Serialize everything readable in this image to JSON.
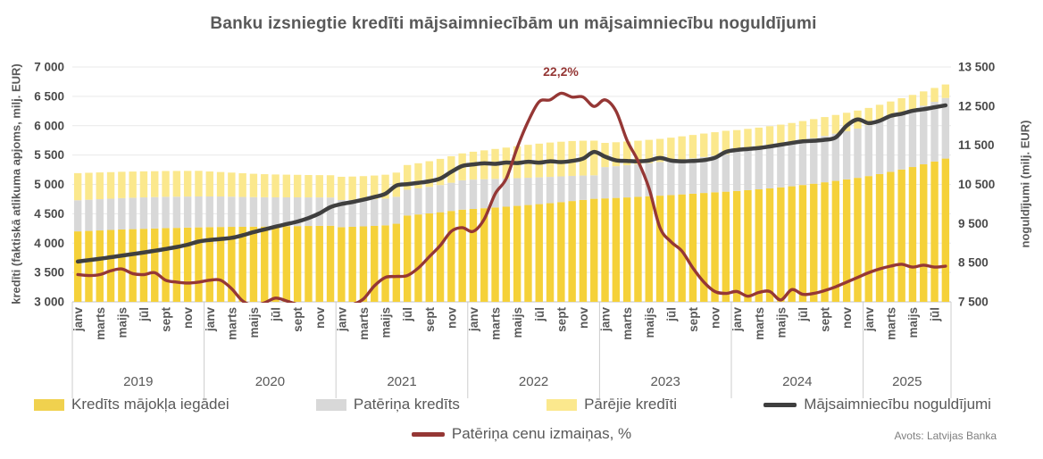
{
  "title": "Banku izsniegtie kredīti mājsaimniecībām un mājsaimniecību noguldījumi",
  "source": "Avots: Latvijas Banka",
  "annotation": {
    "text": "22,2%",
    "series": "Patēriņa cenu izmaiņas, %",
    "x_month": "2022-09"
  },
  "left_axis": {
    "title": "kredīti (faktiskā atlikuma apjoms, milj. EUR)",
    "min": 3000,
    "max": 7000,
    "step": 500,
    "tick_labels": [
      "7 000",
      "6 500",
      "6 000",
      "5 500",
      "5 000",
      "4 500",
      "4 000",
      "3 500",
      "3 000"
    ]
  },
  "right_axis": {
    "title": "noguldījumi (milj. EUR)",
    "min": 7500,
    "max": 13500,
    "step": 1000,
    "tick_labels": [
      "13 500",
      "12 500",
      "11 500",
      "10 500",
      "9 500",
      "8 500",
      "7 500"
    ]
  },
  "x_axis": {
    "month_tick_labels": [
      "janv",
      "marts",
      "maijs",
      "jūl",
      "sept",
      "nov"
    ],
    "years": [
      {
        "label": "2019",
        "months": 12
      },
      {
        "label": "2020",
        "months": 12
      },
      {
        "label": "2021",
        "months": 12
      },
      {
        "label": "2022",
        "months": 12
      },
      {
        "label": "2023",
        "months": 12
      },
      {
        "label": "2024",
        "months": 12
      },
      {
        "label": "2025",
        "months": 8
      }
    ]
  },
  "colors": {
    "mortgage": "#F5D139",
    "consumer": "#D8D8D8",
    "other": "#FBE88D",
    "deposits": "#3F3F3F",
    "inflation": "#953735",
    "gridline": "#E9E9E9",
    "axis_line": "#C0C0C0",
    "separator": "#CCCCCC",
    "tick_text": "#4A4A4A",
    "label_text": "#595959"
  },
  "legend": {
    "row1": [
      {
        "label": "Kredīts mājokļa iegādei",
        "marker": "swatch",
        "color": "#F0D14E"
      },
      {
        "label": "Patēriņa kredīts",
        "marker": "swatch",
        "color": "#D8D8D8"
      },
      {
        "label": "Pārējie kredīti",
        "marker": "swatch",
        "color": "#FBE88D"
      },
      {
        "label": "Mājsaimniecību noguldījumi",
        "marker": "line",
        "color": "#3F3F3F"
      }
    ],
    "row2": [
      {
        "label": "Patēriņa cenu izmaiņas, %",
        "marker": "line",
        "color": "#953735"
      }
    ]
  },
  "chart_data": {
    "type": "combo: stacked bar (monthly) + 2 lines",
    "x_start": "2019-01",
    "x_end": "2025-08",
    "freq": "monthly",
    "ylim_left": [
      3000,
      7000
    ],
    "ylim_right": [
      7500,
      13500
    ],
    "grid": true,
    "legend_position": "bottom",
    "inflation_scale_note": "inflation % plotted on hidden scale: 0% at 3000, 25% at 7000 of left axis (160 left-axis units per 1%)",
    "x_months": [
      "2019-01",
      "2019-02",
      "2019-03",
      "2019-04",
      "2019-05",
      "2019-06",
      "2019-07",
      "2019-08",
      "2019-09",
      "2019-10",
      "2019-11",
      "2019-12",
      "2020-01",
      "2020-02",
      "2020-03",
      "2020-04",
      "2020-05",
      "2020-06",
      "2020-07",
      "2020-08",
      "2020-09",
      "2020-10",
      "2020-11",
      "2020-12",
      "2021-01",
      "2021-02",
      "2021-03",
      "2021-04",
      "2021-05",
      "2021-06",
      "2021-07",
      "2021-08",
      "2021-09",
      "2021-10",
      "2021-11",
      "2021-12",
      "2022-01",
      "2022-02",
      "2022-03",
      "2022-04",
      "2022-05",
      "2022-06",
      "2022-07",
      "2022-08",
      "2022-09",
      "2022-10",
      "2022-11",
      "2022-12",
      "2023-01",
      "2023-02",
      "2023-03",
      "2023-04",
      "2023-05",
      "2023-06",
      "2023-07",
      "2023-08",
      "2023-09",
      "2023-10",
      "2023-11",
      "2023-12",
      "2024-01",
      "2024-02",
      "2024-03",
      "2024-04",
      "2024-05",
      "2024-06",
      "2024-07",
      "2024-08",
      "2024-09",
      "2024-10",
      "2024-11",
      "2024-12",
      "2025-01",
      "2025-02",
      "2025-03",
      "2025-04",
      "2025-05",
      "2025-06",
      "2025-07",
      "2025-08"
    ],
    "series": [
      {
        "name": "Kredīts mājokļa iegādei",
        "type": "bar",
        "stack": "loans",
        "axis": "left",
        "color": "#F5D139",
        "values": [
          4200,
          4208,
          4216,
          4224,
          4232,
          4238,
          4244,
          4250,
          4256,
          4260,
          4264,
          4268,
          4272,
          4275,
          4277,
          4278,
          4280,
          4282,
          4284,
          4287,
          4290,
          4292,
          4294,
          4296,
          4272,
          4278,
          4285,
          4293,
          4302,
          4330,
          4470,
          4488,
          4506,
          4526,
          4548,
          4570,
          4582,
          4594,
          4607,
          4620,
          4634,
          4649,
          4664,
          4680,
          4699,
          4717,
          4736,
          4755,
          4762,
          4770,
          4778,
          4788,
          4798,
          4808,
          4818,
          4830,
          4842,
          4854,
          4866,
          4876,
          4888,
          4902,
          4916,
          4932,
          4950,
          4968,
          4990,
          5012,
          5036,
          5060,
          5086,
          5112,
          5142,
          5176,
          5214,
          5254,
          5296,
          5342,
          5390,
          5440
        ]
      },
      {
        "name": "Patēriņa kredīts",
        "type": "bar",
        "stack": "loans",
        "axis": "left",
        "color": "#D8D8D8",
        "values": [
          530,
          531,
          532,
          533,
          534,
          535,
          535,
          534,
          533,
          531,
          529,
          527,
          523,
          519,
          514,
          508,
          503,
          499,
          496,
          493,
          490,
          487,
          484,
          481,
          462,
          458,
          456,
          455,
          456,
          459,
          440,
          444,
          452,
          463,
          480,
          500,
          500,
          494,
          487,
          480,
          472,
          464,
          456,
          448,
          438,
          428,
          415,
          400,
          533,
          540,
          548,
          556,
          565,
          574,
          583,
          592,
          602,
          613,
          625,
          640,
          686,
          698,
          710,
          722,
          735,
          748,
          762,
          776,
          790,
          805,
          820,
          838,
          868,
          898,
          926,
          952,
          976,
          998,
          1016,
          1032
        ]
      },
      {
        "name": "Pārējie kredīti",
        "type": "bar",
        "stack": "loans",
        "axis": "left",
        "color": "#FBE88D",
        "values": [
          462,
          459,
          456,
          452,
          449,
          446,
          443,
          441,
          439,
          438,
          437,
          436,
          425,
          417,
          410,
          404,
          398,
          393,
          389,
          386,
          383,
          381,
          380,
          379,
          396,
          398,
          400,
          403,
          407,
          412,
          420,
          428,
          437,
          446,
          452,
          458,
          475,
          492,
          510,
          527,
          544,
          561,
          574,
          585,
          590,
          594,
          593,
          590,
          412,
          408,
          404,
          400,
          396,
          393,
          395,
          397,
          398,
          399,
          398,
          397,
          351,
          346,
          341,
          337,
          333,
          330,
          327,
          324,
          321,
          318,
          314,
          308,
          292,
          282,
          272,
          262,
          252,
          244,
          237,
          230
        ]
      },
      {
        "name": "Mājsaimniecību noguldījumi",
        "type": "line",
        "axis": "right",
        "color": "#3F3F3F",
        "values": [
          8530,
          8565,
          8600,
          8640,
          8680,
          8720,
          8760,
          8805,
          8850,
          8900,
          8960,
          9040,
          9080,
          9105,
          9135,
          9200,
          9280,
          9350,
          9420,
          9485,
          9550,
          9640,
          9760,
          9920,
          10000,
          10050,
          10110,
          10180,
          10260,
          10470,
          10505,
          10540,
          10580,
          10650,
          10820,
          10970,
          11010,
          11040,
          11025,
          11060,
          11045,
          11080,
          11055,
          11090,
          11070,
          11100,
          11160,
          11330,
          11210,
          11115,
          11100,
          11090,
          11110,
          11175,
          11110,
          11090,
          11100,
          11120,
          11180,
          11330,
          11380,
          11405,
          11430,
          11470,
          11515,
          11560,
          11600,
          11615,
          11640,
          11700,
          12000,
          12160,
          12065,
          12125,
          12250,
          12305,
          12380,
          12420,
          12470,
          12520
        ]
      },
      {
        "name": "Patēriņa cenu izmaiņas, %",
        "type": "line",
        "axis": "hidden",
        "color": "#953735",
        "values": [
          2.9,
          2.8,
          2.9,
          3.3,
          3.5,
          3.0,
          2.9,
          3.1,
          2.3,
          2.1,
          2.0,
          2.1,
          2.3,
          2.3,
          1.4,
          0.1,
          -0.4,
          -0.1,
          0.4,
          0.1,
          -0.3,
          -0.7,
          -0.6,
          -0.5,
          -0.5,
          -0.3,
          0.3,
          1.7,
          2.6,
          2.7,
          2.8,
          3.6,
          4.8,
          6.0,
          7.5,
          7.9,
          7.5,
          8.8,
          11.5,
          13.1,
          16.4,
          19.2,
          21.3,
          21.5,
          22.2,
          21.8,
          21.8,
          20.8,
          21.5,
          20.3,
          17.2,
          15.0,
          12.1,
          7.9,
          6.4,
          5.4,
          3.6,
          2.1,
          1.1,
          0.9,
          1.1,
          0.6,
          1.0,
          1.1,
          0.2,
          1.3,
          0.8,
          0.9,
          1.2,
          1.6,
          2.1,
          2.6,
          3.1,
          3.5,
          3.8,
          4.0,
          3.7,
          3.9,
          3.7,
          3.8
        ]
      }
    ]
  }
}
